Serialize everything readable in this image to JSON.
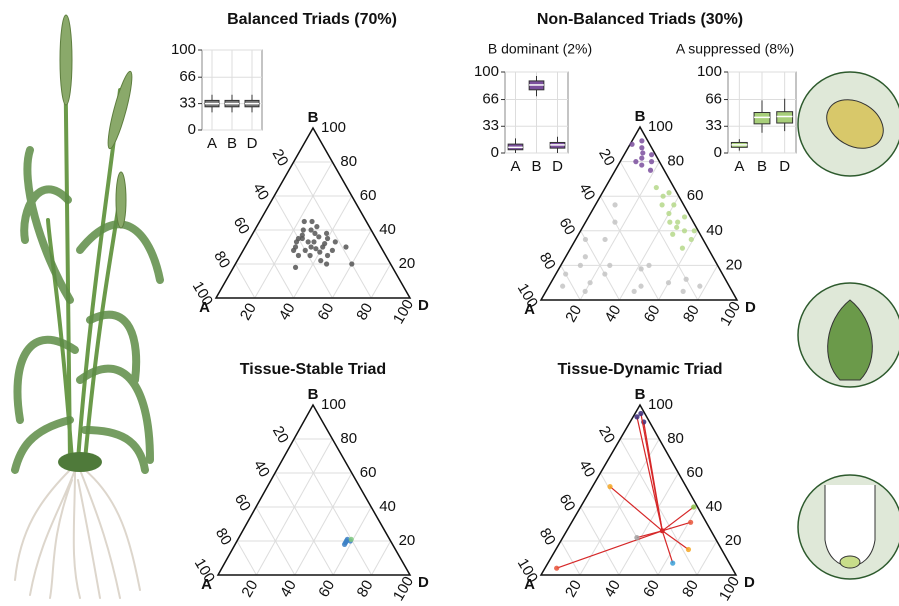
{
  "chart_data": [
    {
      "type": "box",
      "categories": [
        "A",
        "B",
        "D"
      ],
      "color": "#777777",
      "min": [
        22,
        22,
        22
      ],
      "q1": [
        29,
        29,
        29
      ],
      "median": [
        33,
        33,
        33
      ],
      "q3": [
        37,
        37,
        37
      ],
      "max": [
        44,
        44,
        44
      ],
      "ylim": [
        0,
        100
      ],
      "yticks": [
        0,
        33,
        66,
        100
      ],
      "grid": true
    },
    {
      "type": "ternary",
      "title": "Balanced Triads (70%)",
      "vertices": [
        "A",
        "B",
        "D"
      ],
      "ticks": [
        20,
        40,
        60,
        80,
        100
      ],
      "grid": true,
      "series": [
        {
          "color": "#555555",
          "a": [
            33,
            30,
            36,
            28,
            40,
            35,
            25,
            38,
            30,
            42,
            27,
            33,
            45,
            30,
            37,
            26,
            40,
            32,
            35,
            44,
            29,
            34,
            31,
            39,
            24,
            36,
            28,
            46,
            33,
            22,
            20,
            50,
            18
          ],
          "b": [
            33,
            38,
            30,
            32,
            28,
            40,
            35,
            35,
            25,
            33,
            42,
            27,
            25,
            30,
            37,
            28,
            35,
            45,
            22,
            30,
            36,
            29,
            40,
            25,
            38,
            33,
            45,
            28,
            20,
            33,
            20,
            18,
            30
          ],
          "d": [
            34,
            32,
            34,
            40,
            32,
            25,
            40,
            27,
            45,
            25,
            31,
            40,
            30,
            40,
            26,
            46,
            25,
            23,
            43,
            26,
            35,
            37,
            29,
            36,
            38,
            31,
            27,
            26,
            47,
            45,
            60,
            32,
            52
          ]
        }
      ]
    },
    {
      "type": "box",
      "title": "B dominant (2%)",
      "categories": [
        "A",
        "B",
        "D"
      ],
      "color": "#7b4f9d",
      "min": [
        0,
        70,
        0
      ],
      "q1": [
        4,
        78,
        6
      ],
      "median": [
        7,
        84,
        10
      ],
      "q3": [
        11,
        89,
        13
      ],
      "max": [
        18,
        95,
        20
      ],
      "ylim": [
        0,
        100
      ],
      "yticks": [
        0,
        33,
        66,
        100
      ],
      "grid": true
    },
    {
      "type": "box",
      "title": "A suppressed (8%)",
      "categories": [
        "A",
        "B",
        "D"
      ],
      "color": "#a8cf7a",
      "min": [
        3,
        25,
        27
      ],
      "q1": [
        7,
        36,
        37
      ],
      "median": [
        10,
        44,
        45
      ],
      "q3": [
        13,
        50,
        51
      ],
      "max": [
        17,
        65,
        67
      ],
      "ylim": [
        0,
        100
      ],
      "yticks": [
        0,
        33,
        66,
        100
      ],
      "grid": true
    },
    {
      "type": "ternary",
      "title": "Non-Balanced Triads (30%)",
      "vertices": [
        "A",
        "B",
        "D"
      ],
      "ticks": [
        20,
        40,
        60,
        80,
        100
      ],
      "grid": true,
      "series": [
        {
          "color": "#c4c4c4",
          "a": [
            70,
            60,
            45,
            30,
            20,
            55,
            75,
            40,
            25,
            85,
            65,
            50,
            40,
            35,
            60,
            15,
            80,
            50,
            35,
            70
          ],
          "b": [
            10,
            15,
            8,
            10,
            12,
            20,
            5,
            18,
            5,
            8,
            25,
            35,
            45,
            55,
            35,
            8,
            15,
            5,
            20,
            20
          ],
          "d": [
            20,
            25,
            47,
            60,
            68,
            25,
            20,
            42,
            70,
            7,
            10,
            15,
            15,
            10,
            5,
            77,
            5,
            45,
            45,
            10
          ]
        },
        {
          "color": "#7b4f9d",
          "a": [
            5,
            8,
            3,
            10,
            6,
            12,
            4,
            9,
            7,
            2
          ],
          "b": [
            88,
            82,
            92,
            78,
            85,
            80,
            80,
            90,
            75,
            84
          ],
          "d": [
            7,
            10,
            5,
            12,
            9,
            8,
            16,
            1,
            18,
            14
          ]
        },
        {
          "color": "#b5d88a",
          "a": [
            8,
            10,
            5,
            12,
            7,
            3,
            14,
            9,
            6,
            11,
            4,
            13,
            8,
            2,
            10
          ],
          "b": [
            60,
            50,
            55,
            45,
            40,
            48,
            38,
            65,
            35,
            55,
            62,
            30,
            45,
            40,
            42
          ],
          "d": [
            32,
            40,
            40,
            43,
            53,
            49,
            48,
            26,
            59,
            34,
            34,
            57,
            47,
            58,
            48
          ]
        }
      ]
    },
    {
      "type": "ternary",
      "title": "Tissue-Stable Triad",
      "vertices": [
        "A",
        "B",
        "D"
      ],
      "ticks": [
        20,
        40,
        60,
        80,
        100
      ],
      "grid": true,
      "series": [
        {
          "color": "#3b7fc4",
          "a": [
            23,
            24,
            22,
            25,
            21
          ],
          "b": [
            20,
            19,
            21,
            18,
            20
          ],
          "d": [
            57,
            57,
            57,
            57,
            59
          ]
        },
        {
          "color": "#7fc97f",
          "a": [
            20
          ],
          "b": [
            21
          ],
          "d": [
            59
          ]
        }
      ]
    },
    {
      "type": "ternary",
      "title": "Tissue-Dynamic Triad",
      "vertices": [
        "A",
        "B",
        "D"
      ],
      "ticks": [
        20,
        40,
        60,
        80,
        100
      ],
      "grid": true,
      "line_color": "#d62728",
      "hub": {
        "a": 25,
        "b": 26,
        "d": 49
      },
      "series": [
        {
          "color": "#3a2a7a",
          "a": [
            5,
            3,
            2
          ],
          "b": [
            93,
            90,
            95
          ],
          "d": [
            2,
            7,
            3
          ]
        },
        {
          "color": "#f5a623",
          "a": [
            39,
            17
          ],
          "b": [
            52,
            15
          ],
          "d": [
            9,
            68
          ]
        },
        {
          "color": "#e8543a",
          "a": [
            90,
            8
          ],
          "b": [
            4,
            31
          ],
          "d": [
            6,
            61
          ]
        },
        {
          "color": "#a0a0a0",
          "a": [
            40
          ],
          "b": [
            22
          ],
          "d": [
            38
          ]
        },
        {
          "color": "#3aa0d8",
          "a": [
            29
          ],
          "b": [
            7
          ],
          "d": [
            64
          ]
        },
        {
          "color": "#8bc34a",
          "a": [
            2
          ],
          "b": [
            40
          ],
          "d": [
            58
          ]
        }
      ]
    }
  ]
}
